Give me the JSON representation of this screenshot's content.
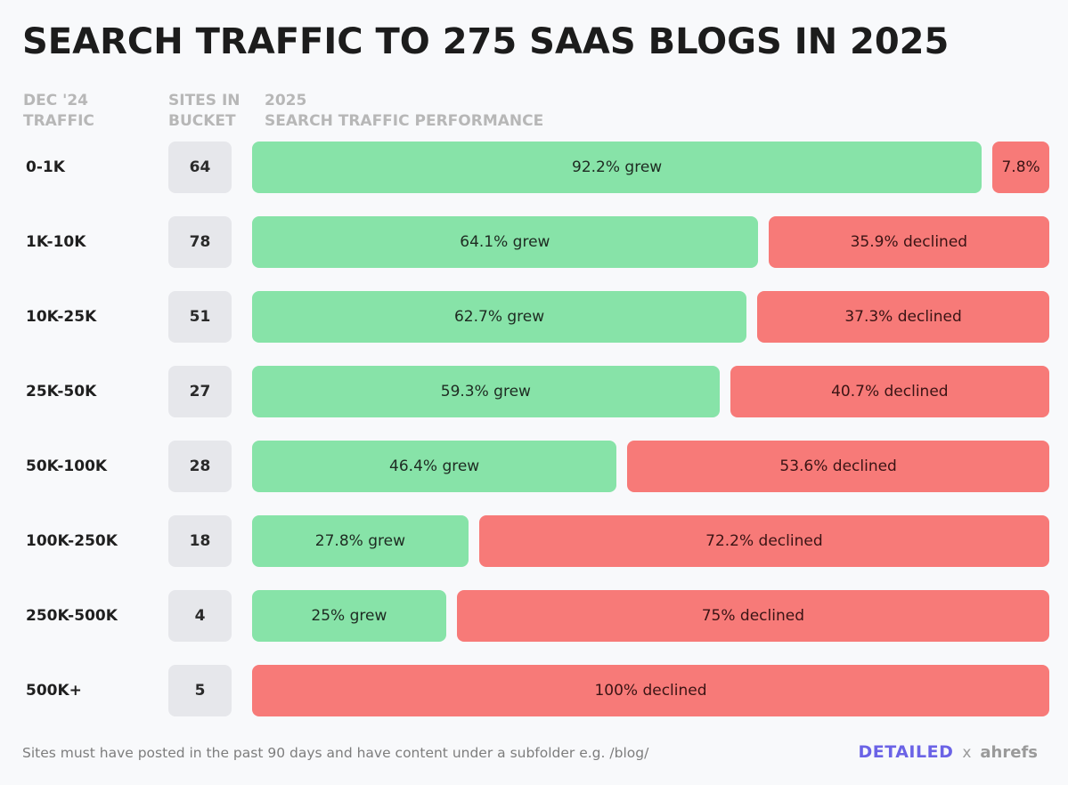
{
  "chart_data": {
    "type": "bar",
    "title": "SEARCH TRAFFIC TO 275 SAAS BLOGS IN 2025",
    "column_headers": {
      "traffic": [
        "DEC '24",
        "TRAFFIC"
      ],
      "sites": [
        "SITES IN",
        "BUCKET"
      ],
      "performance": [
        "2025",
        "SEARCH TRAFFIC PERFORMANCE"
      ]
    },
    "categories": [
      "0-1K",
      "1K-10K",
      "10K-25K",
      "25K-50K",
      "50K-100K",
      "100K-250K",
      "250K-500K",
      "500K+"
    ],
    "sites_in_bucket": [
      "64",
      "78",
      "51",
      "27",
      "28",
      "18",
      "4",
      "5"
    ],
    "series": [
      {
        "key": "grew",
        "values": [
          92.2,
          64.1,
          62.7,
          59.3,
          46.4,
          27.8,
          25,
          0
        ],
        "labels": [
          "92.2% grew",
          "64.1% grew",
          "62.7% grew",
          "59.3% grew",
          "46.4% grew",
          "27.8% grew",
          "25% grew",
          ""
        ],
        "color": "#87e3a8"
      },
      {
        "key": "declined",
        "values": [
          7.8,
          35.9,
          37.3,
          40.7,
          53.6,
          72.2,
          75,
          100
        ],
        "labels": [
          "7.8%",
          "35.9% declined",
          "37.3% declined",
          "40.7% declined",
          "53.6% declined",
          "72.2% declined",
          "75% declined",
          "100% declined"
        ],
        "color": "#f77a78"
      }
    ],
    "stacked": true,
    "xlim": [
      0,
      100
    ]
  },
  "footnote": "Sites must have posted in the past 90 days and have content under a subfolder e.g. /blog/",
  "brand": {
    "primary": "DETAILED",
    "separator": "x",
    "partner": "ahrefs",
    "primary_color": "#6b63e6"
  }
}
